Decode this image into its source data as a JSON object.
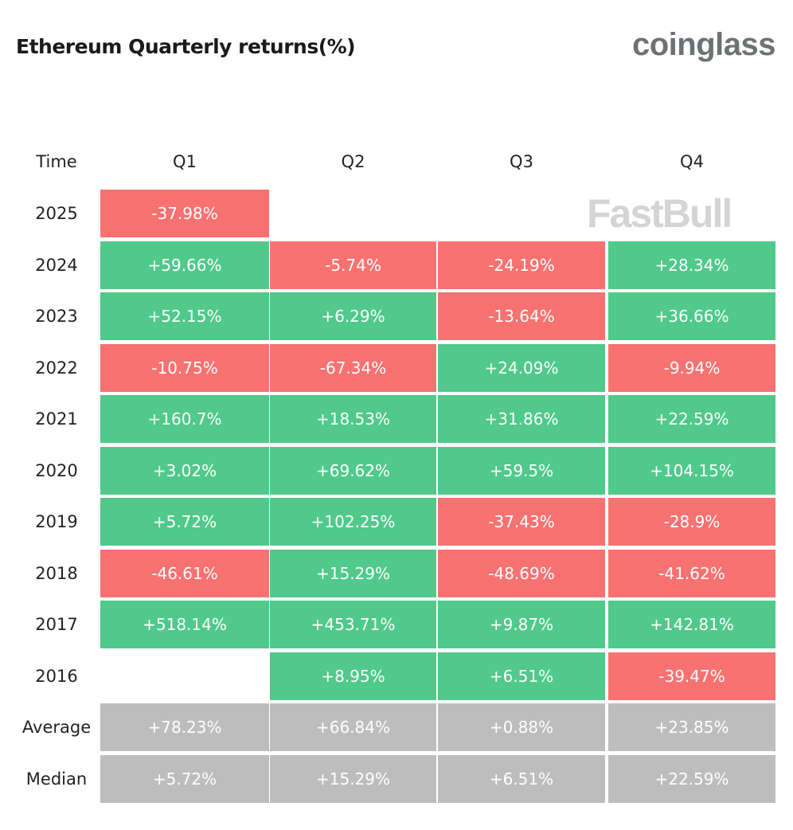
{
  "title": "Ethereum Quarterly returns(%)",
  "logo": "coinglass",
  "watermark": "FastBull",
  "chart_data": {
    "type": "table",
    "title": "Ethereum Quarterly returns(%)",
    "corner_label": "Time",
    "columns": [
      "Q1",
      "Q2",
      "Q3",
      "Q4"
    ],
    "colors": {
      "positive": "#50c98b",
      "negative": "#f87272",
      "summary": "#bdbdbd"
    },
    "rows": [
      {
        "label": "2025",
        "type": "year",
        "values": [
          "-37.98%",
          null,
          null,
          null
        ]
      },
      {
        "label": "2024",
        "type": "year",
        "values": [
          "+59.66%",
          "-5.74%",
          "-24.19%",
          "+28.34%"
        ]
      },
      {
        "label": "2023",
        "type": "year",
        "values": [
          "+52.15%",
          "+6.29%",
          "-13.64%",
          "+36.66%"
        ]
      },
      {
        "label": "2022",
        "type": "year",
        "values": [
          "-10.75%",
          "-67.34%",
          "+24.09%",
          "-9.94%"
        ]
      },
      {
        "label": "2021",
        "type": "year",
        "values": [
          "+160.7%",
          "+18.53%",
          "+31.86%",
          "+22.59%"
        ]
      },
      {
        "label": "2020",
        "type": "year",
        "values": [
          "+3.02%",
          "+69.62%",
          "+59.5%",
          "+104.15%"
        ]
      },
      {
        "label": "2019",
        "type": "year",
        "values": [
          "+5.72%",
          "+102.25%",
          "-37.43%",
          "-28.9%"
        ]
      },
      {
        "label": "2018",
        "type": "year",
        "values": [
          "-46.61%",
          "+15.29%",
          "-48.69%",
          "-41.62%"
        ]
      },
      {
        "label": "2017",
        "type": "year",
        "values": [
          "+518.14%",
          "+453.71%",
          "+9.87%",
          "+142.81%"
        ]
      },
      {
        "label": "2016",
        "type": "year",
        "values": [
          null,
          "+8.95%",
          "+6.51%",
          "-39.47%"
        ]
      },
      {
        "label": "Average",
        "type": "summary",
        "values": [
          "+78.23%",
          "+66.84%",
          "+0.88%",
          "+23.85%"
        ]
      },
      {
        "label": "Median",
        "type": "summary",
        "values": [
          "+5.72%",
          "+15.29%",
          "+6.51%",
          "+22.59%"
        ]
      }
    ]
  }
}
